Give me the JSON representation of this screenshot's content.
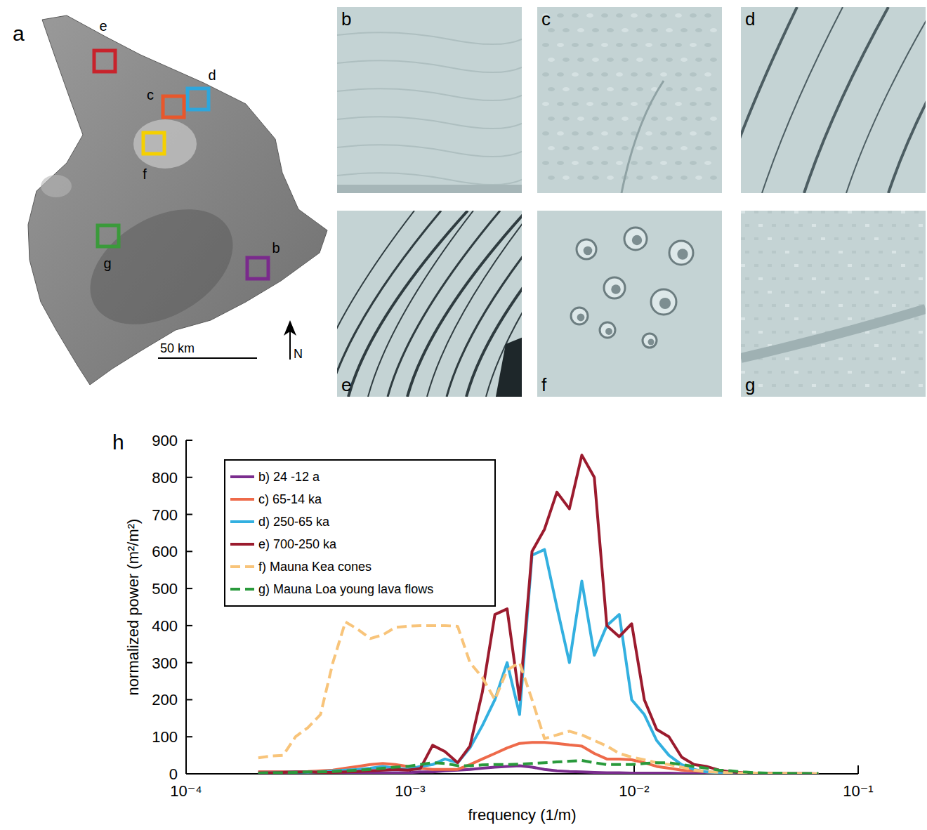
{
  "map": {
    "panel_label": "a",
    "sites": [
      {
        "label": "e",
        "color": "#c8232c"
      },
      {
        "label": "d",
        "color": "#2ea6dc"
      },
      {
        "label": "c",
        "color": "#e8572b"
      },
      {
        "label": "f",
        "color": "#f5d000"
      },
      {
        "label": "g",
        "color": "#3a9a3a"
      },
      {
        "label": "b",
        "color": "#7a2a8c"
      }
    ],
    "scale_bar_label": "50 km",
    "north_label": "N"
  },
  "panels": [
    {
      "label": "b"
    },
    {
      "label": "c"
    },
    {
      "label": "d"
    },
    {
      "label": "e"
    },
    {
      "label": "f"
    },
    {
      "label": "g"
    }
  ],
  "chart_data": {
    "type": "line",
    "panel_label": "h",
    "x_label": "frequency (1/m)",
    "y_label": "normalized power (m²/m²)",
    "log": "x",
    "legend": "upper left",
    "grid": false,
    "xlim": [
      0.0001,
      0.1
    ],
    "xticks": [
      {
        "value": 0.0001,
        "label": "10⁻⁴"
      },
      {
        "value": 0.001,
        "label": "10⁻³"
      },
      {
        "value": 0.01,
        "label": "10⁻²"
      },
      {
        "value": 0.1,
        "label": "10⁻¹"
      }
    ],
    "ylim": [
      0,
      900
    ],
    "yticks": [
      0,
      100,
      200,
      300,
      400,
      500,
      600,
      700,
      800,
      900
    ],
    "x": [
      0.00021,
      0.000239,
      0.000271,
      0.000308,
      0.00035,
      0.000398,
      0.000452,
      0.000514,
      0.000584,
      0.000664,
      0.000755,
      0.000858,
      0.000975,
      0.00111,
      0.00126,
      0.00143,
      0.00163,
      0.00185,
      0.0021,
      0.00239,
      0.00271,
      0.00308,
      0.0035,
      0.00398,
      0.00452,
      0.00514,
      0.00584,
      0.00664,
      0.00755,
      0.00858,
      0.00975,
      0.0111,
      0.0126,
      0.0143,
      0.0163,
      0.0185,
      0.021,
      0.0239,
      0.0271,
      0.0308,
      0.035,
      0.0398,
      0.0452,
      0.0514,
      0.0584,
      0.0664
    ],
    "series": [
      {
        "name": "b) 24 -12 a",
        "color": "#7b2d8e",
        "line_style": "solid",
        "values": [
          5,
          5,
          5,
          5,
          5,
          4,
          3,
          3,
          3,
          3,
          3,
          3,
          3,
          5,
          5,
          8,
          10,
          12,
          15,
          18,
          20,
          22,
          18,
          12,
          8,
          6,
          5,
          4,
          3,
          3,
          2,
          2,
          2,
          2,
          1,
          1,
          1,
          0,
          0,
          0,
          0,
          0,
          0,
          0,
          0,
          0
        ]
      },
      {
        "name": "c) 65-14 ka",
        "color": "#ee6a4a",
        "line_style": "solid",
        "values": [
          5,
          5,
          5,
          5,
          6,
          8,
          10,
          15,
          20,
          25,
          28,
          25,
          20,
          15,
          12,
          12,
          12,
          25,
          40,
          55,
          70,
          82,
          85,
          85,
          82,
          78,
          75,
          55,
          40,
          40,
          38,
          30,
          20,
          15,
          10,
          8,
          5,
          3,
          2,
          1,
          1,
          0,
          0,
          0,
          0,
          0
        ]
      },
      {
        "name": "d) 250-65 ka",
        "color": "#33b0e0",
        "line_style": "solid",
        "values": [
          2,
          3,
          4,
          5,
          4,
          5,
          8,
          10,
          12,
          15,
          20,
          15,
          12,
          20,
          25,
          40,
          30,
          70,
          130,
          200,
          300,
          160,
          590,
          605,
          450,
          300,
          520,
          320,
          400,
          430,
          200,
          160,
          90,
          50,
          25,
          12,
          5,
          3,
          2,
          1,
          1,
          1,
          0,
          0,
          0,
          0
        ]
      },
      {
        "name": "e) 700-250 ka",
        "color": "#9b1b2e",
        "line_style": "solid",
        "values": [
          3,
          3,
          4,
          5,
          5,
          4,
          4,
          5,
          6,
          8,
          10,
          12,
          10,
          14,
          77,
          60,
          30,
          75,
          220,
          430,
          445,
          200,
          600,
          660,
          760,
          715,
          860,
          800,
          400,
          370,
          405,
          200,
          120,
          100,
          45,
          25,
          20,
          10,
          5,
          3,
          2,
          2,
          1,
          1,
          1,
          0
        ]
      },
      {
        "name": "f) Mauna Kea cones",
        "color": "#f8c47a",
        "line_style": "dashed",
        "values": [
          43,
          48,
          50,
          100,
          125,
          160,
          300,
          410,
          390,
          365,
          375,
          395,
          398,
          400,
          400,
          400,
          398,
          300,
          260,
          200,
          280,
          300,
          200,
          95,
          105,
          115,
          105,
          90,
          75,
          55,
          45,
          38,
          30,
          25,
          18,
          10,
          6,
          4,
          3,
          2,
          2,
          1,
          1,
          1,
          0,
          0
        ]
      },
      {
        "name": "g) Mauna Loa young lava flows",
        "color": "#2a9a3c",
        "line_style": "dashed",
        "values": [
          2,
          3,
          3,
          4,
          5,
          5,
          6,
          8,
          10,
          12,
          15,
          18,
          20,
          25,
          30,
          28,
          22,
          22,
          24,
          25,
          25,
          26,
          28,
          30,
          32,
          34,
          36,
          30,
          25,
          25,
          25,
          28,
          30,
          30,
          25,
          20,
          15,
          10,
          8,
          5,
          3,
          2,
          2,
          1,
          1,
          1
        ]
      }
    ]
  }
}
